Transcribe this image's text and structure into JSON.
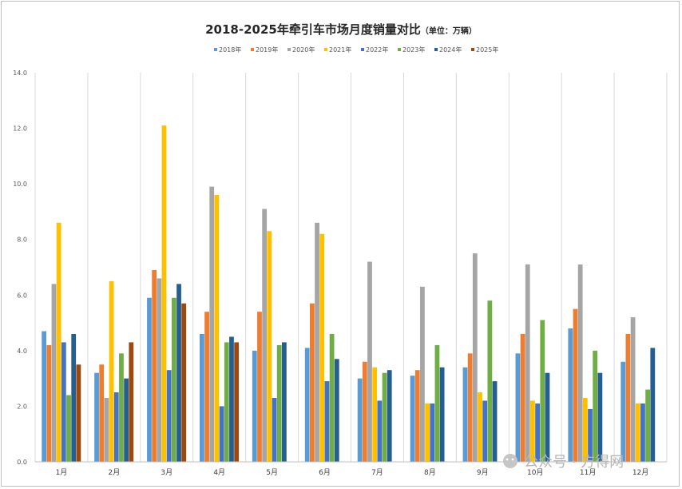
{
  "chart_data": {
    "type": "bar",
    "title": "2018-2025年牵引车市场月度销量对比",
    "subtitle": "（单位：万辆）",
    "xlabel": "",
    "ylabel": "",
    "ylim": [
      0,
      14
    ],
    "yticks": [
      "0.0",
      "2.0",
      "4.0",
      "6.0",
      "8.0",
      "10.0",
      "12.0",
      "14.0"
    ],
    "grid": "vertical",
    "legend_position": "top",
    "categories": [
      "1月",
      "2月",
      "3月",
      "4月",
      "5月",
      "6月",
      "7月",
      "8月",
      "9月",
      "10月",
      "11月",
      "12月"
    ],
    "series": [
      {
        "name": "2018年",
        "color": "#5b9bd5",
        "values": [
          4.7,
          3.2,
          5.9,
          4.6,
          4.0,
          4.1,
          3.0,
          3.1,
          3.4,
          3.9,
          4.8,
          3.6
        ]
      },
      {
        "name": "2019年",
        "color": "#ed7d31",
        "values": [
          4.2,
          3.5,
          6.9,
          5.4,
          5.4,
          5.7,
          3.6,
          3.3,
          3.9,
          4.6,
          5.5,
          4.6
        ]
      },
      {
        "name": "2020年",
        "color": "#a5a5a5",
        "values": [
          6.4,
          2.3,
          6.6,
          9.9,
          9.1,
          8.6,
          7.2,
          6.3,
          7.5,
          7.1,
          7.1,
          5.2
        ]
      },
      {
        "name": "2021年",
        "color": "#ffc000",
        "values": [
          8.6,
          6.5,
          12.1,
          9.6,
          8.3,
          8.2,
          3.4,
          2.1,
          2.5,
          2.2,
          2.3,
          2.1
        ]
      },
      {
        "name": "2022年",
        "color": "#4472c4",
        "values": [
          4.3,
          2.5,
          3.3,
          2.0,
          2.3,
          2.9,
          2.2,
          2.1,
          2.2,
          2.1,
          1.9,
          2.1
        ]
      },
      {
        "name": "2023年",
        "color": "#70ad47",
        "values": [
          2.4,
          3.9,
          5.9,
          4.3,
          4.2,
          4.6,
          3.2,
          4.2,
          5.8,
          5.1,
          4.0,
          2.6
        ]
      },
      {
        "name": "2024年",
        "color": "#255e91",
        "values": [
          4.6,
          3.0,
          6.4,
          4.5,
          4.3,
          3.7,
          3.3,
          3.4,
          2.9,
          3.2,
          3.2,
          4.1
        ]
      },
      {
        "name": "2025年",
        "color": "#9e480e",
        "values": [
          3.5,
          4.3,
          5.7,
          4.3,
          null,
          null,
          null,
          null,
          null,
          null,
          null,
          null
        ]
      }
    ]
  },
  "watermark": {
    "text": "公众号 · 方得网",
    "icon": "wechat-icon"
  }
}
